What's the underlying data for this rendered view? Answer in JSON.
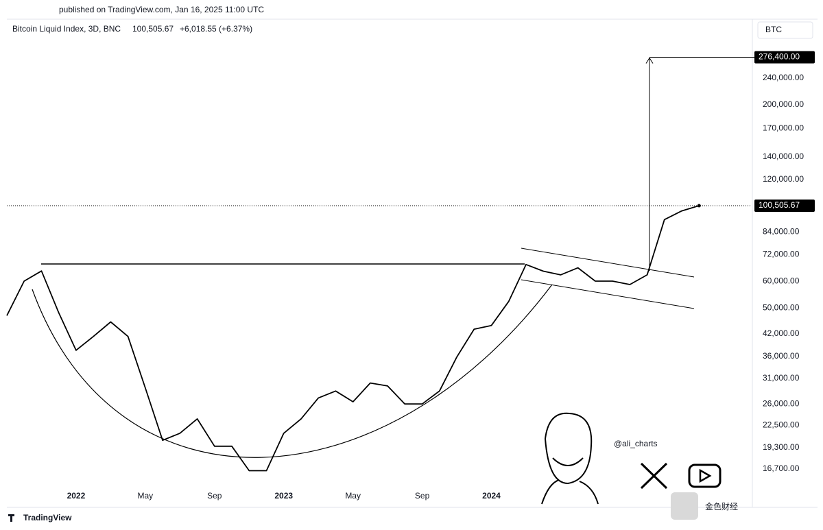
{
  "published": "published on TradingView.com, Jan 16, 2025 11:00 UTC",
  "brand": "TradingView",
  "watermark": "@ali_charts",
  "watermark2": "金色财经",
  "chart_data": {
    "type": "line",
    "title": "Bitcoin Liquid Index, 3D, BNC",
    "change": "+6,018.55 (+6.37%)",
    "currency": "BTC",
    "color": "#000000",
    "log_scale": true,
    "x": [
      "2021-09",
      "2021-10",
      "2021-11",
      "2021-12",
      "2022-01",
      "2022-02",
      "2022-03",
      "2022-04",
      "2022-05",
      "2022-06",
      "2022-07",
      "2022-08",
      "2022-09",
      "2022-10",
      "2022-11",
      "2022-12",
      "2023-01",
      "2023-02",
      "2023-03",
      "2023-04",
      "2023-05",
      "2023-06",
      "2023-07",
      "2023-08",
      "2023-09",
      "2023-10",
      "2023-11",
      "2023-12",
      "2024-01",
      "2024-02",
      "2024-03",
      "2024-04",
      "2024-05",
      "2024-06",
      "2024-07",
      "2024-08",
      "2024-09",
      "2024-10",
      "2024-11",
      "2024-12",
      "2025-01"
    ],
    "values": [
      47500,
      60100,
      64400,
      48400,
      37500,
      41200,
      45500,
      41200,
      29000,
      20300,
      21300,
      23500,
      19500,
      19500,
      16500,
      16500,
      21300,
      23500,
      27100,
      28400,
      26400,
      30000,
      29400,
      26000,
      26000,
      28400,
      35800,
      43300,
      44400,
      52300,
      67300,
      64300,
      62700,
      65800,
      60100,
      60100,
      58700,
      62700,
      91400,
      97000,
      100505.67
    ],
    "xlim": [
      "2021-09",
      "2025-04"
    ],
    "xticks": [
      {
        "value": "2022-01",
        "label": "2022"
      },
      {
        "value": "2022-05",
        "label": "May"
      },
      {
        "value": "2022-09",
        "label": "Sep"
      },
      {
        "value": "2023-01",
        "label": "2023"
      },
      {
        "value": "2023-05",
        "label": "May"
      },
      {
        "value": "2023-09",
        "label": "Sep"
      },
      {
        "value": "2024-01",
        "label": "2024"
      }
    ],
    "ylim": [
      12850,
      355000
    ],
    "yticks": [
      {
        "value": 16700,
        "label": "16,700.00"
      },
      {
        "value": 19300,
        "label": "19,300.00"
      },
      {
        "value": 22500,
        "label": "22,500.00"
      },
      {
        "value": 26000,
        "label": "26,000.00"
      },
      {
        "value": 31000,
        "label": "31,000.00"
      },
      {
        "value": 36000,
        "label": "36,000.00"
      },
      {
        "value": 42000,
        "label": "42,000.00"
      },
      {
        "value": 50000,
        "label": "50,000.00"
      },
      {
        "value": 60000,
        "label": "60,000.00"
      },
      {
        "value": 72000,
        "label": "72,000.00"
      },
      {
        "value": 84000,
        "label": "84,000.00"
      },
      {
        "value": 120000,
        "label": "120,000.00"
      },
      {
        "value": 140000,
        "label": "140,000.00"
      },
      {
        "value": 170000,
        "label": "170,000.00"
      },
      {
        "value": 200000,
        "label": "200,000.00"
      },
      {
        "value": 240000,
        "label": "240,000.00"
      }
    ],
    "price_label": {
      "value": 100505.67,
      "label": "100,505.67"
    },
    "target": {
      "value": 276400,
      "label": "276,400.00"
    }
  }
}
